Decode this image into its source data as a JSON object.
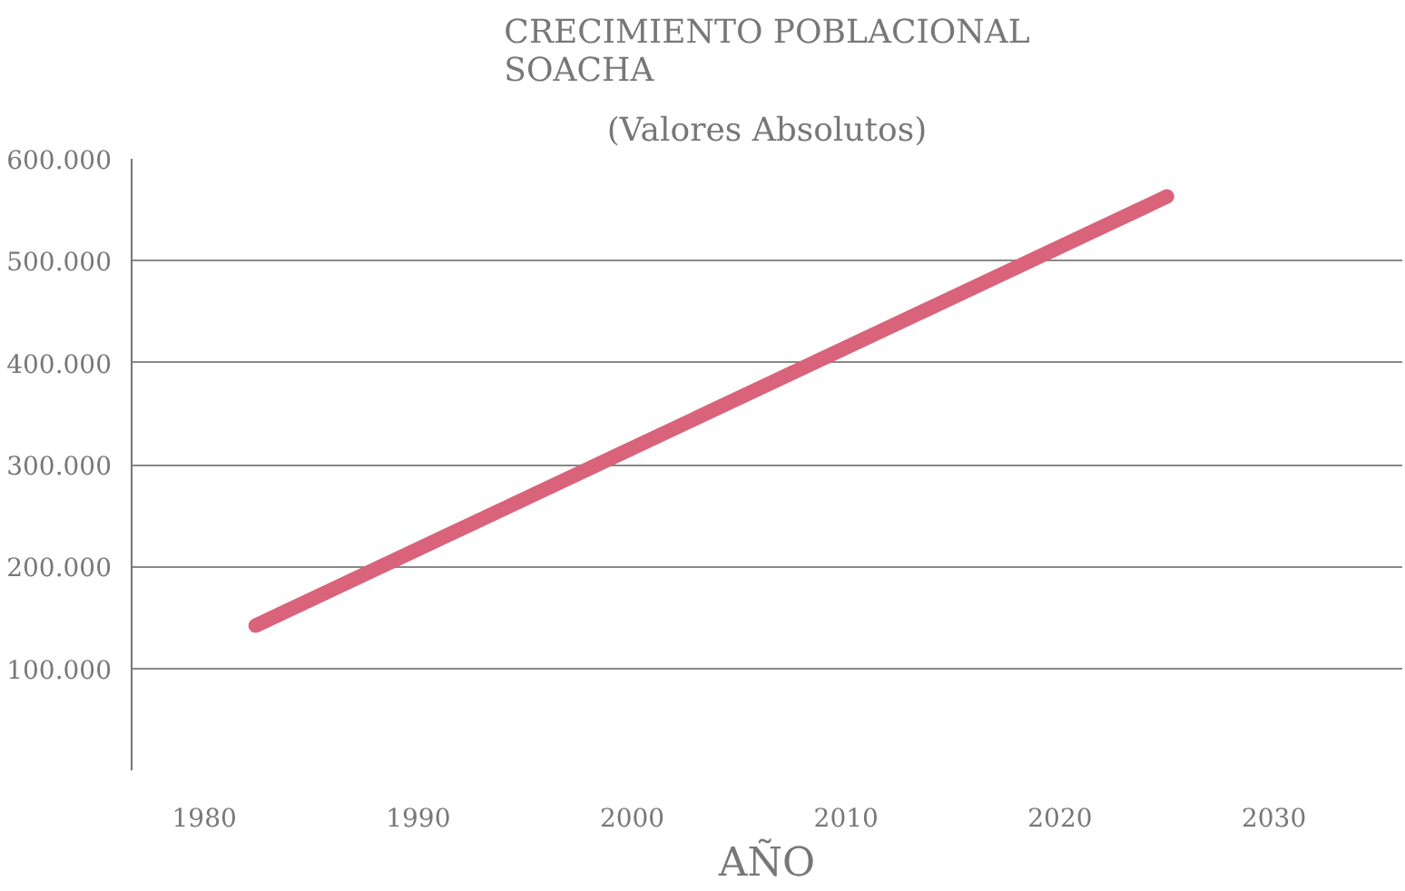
{
  "chart_data": {
    "type": "line",
    "title": "CRECIMIENTO POBLACIONAL\nSOACHA",
    "subtitle": "(Valores Absolutos)",
    "xlabel": "AÑO",
    "x": [
      1982.4,
      2000,
      2025
    ],
    "series": [
      {
        "color": "#d9637a",
        "values": [
          142000,
          316000,
          563000
        ]
      }
    ],
    "xlim": [
      1976.6,
      2036
    ],
    "xticks": [
      1980,
      1990,
      2000,
      2010,
      2020,
      2030
    ],
    "ylim": [
      0,
      600000
    ],
    "yticks": [
      {
        "value": 100000,
        "label": "100.000"
      },
      {
        "value": 200000,
        "label": "200.000"
      },
      {
        "value": 300000,
        "label": "300.000"
      },
      {
        "value": 400000,
        "label": "400.000"
      },
      {
        "value": 500000,
        "label": "500.000"
      },
      {
        "value": 600000,
        "label": "600.000"
      }
    ],
    "grid": "y",
    "marker": "none",
    "line_style": "solid"
  }
}
